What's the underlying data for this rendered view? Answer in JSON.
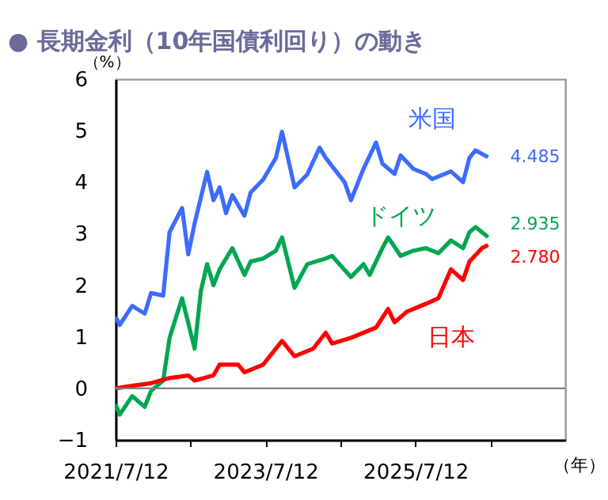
{
  "chart_data": {
    "type": "line",
    "title": "● 長期金利（10年国債利回り）の動き",
    "xlabel": "（年）",
    "ylabel": "（%）",
    "xlim": [
      "2021-07-12",
      "2027-07-12"
    ],
    "xticks": [
      {
        "value": "2021-07-12",
        "label": "2021/7/12"
      },
      {
        "value": "2022-07-12",
        "label": null
      },
      {
        "value": "2023-07-12",
        "label": "2023/7/12"
      },
      {
        "value": "2024-07-12",
        "label": null
      },
      {
        "value": "2025-07-12",
        "label": "2025/7/12"
      },
      {
        "value": "2026-07-12",
        "label": null
      }
    ],
    "ylim": [
      -1,
      6
    ],
    "yticks": [
      -1,
      0,
      1,
      2,
      3,
      4,
      5,
      6
    ],
    "grid": false,
    "ref_lines": [
      {
        "axis": "y",
        "value": 0,
        "color": "#808080"
      }
    ],
    "series": [
      {
        "name": "米国",
        "color": "#3d6bff",
        "x": [
          "2021-07-12",
          "2021-08",
          "2021-10",
          "2021-12",
          "2022-01",
          "2022-03",
          "2022-04",
          "2022-06",
          "2022-07",
          "2022-08",
          "2022-10",
          "2022-11",
          "2022-12",
          "2023-01",
          "2023-02",
          "2023-04",
          "2023-05",
          "2023-07",
          "2023-09",
          "2023-10",
          "2023-12",
          "2024-02",
          "2024-04",
          "2024-05",
          "2024-06",
          "2024-08",
          "2024-09",
          "2024-11",
          "2025-01",
          "2025-02",
          "2025-04",
          "2025-05",
          "2025-07",
          "2025-09",
          "2025-10",
          "2026-01",
          "2026-03",
          "2026-04",
          "2026-05",
          "2026-07"
        ],
        "values": [
          1.39,
          1.23,
          1.6,
          1.45,
          1.85,
          1.8,
          3.03,
          3.5,
          2.6,
          3.2,
          4.2,
          3.65,
          3.9,
          3.4,
          3.75,
          3.35,
          3.8,
          4.05,
          4.47,
          4.98,
          3.9,
          4.15,
          4.67,
          4.47,
          4.31,
          4.0,
          3.65,
          4.26,
          4.77,
          4.36,
          4.16,
          4.52,
          4.26,
          4.16,
          4.06,
          4.21,
          4.0,
          4.47,
          4.62,
          4.485
        ],
        "value_labels": [
          null,
          null,
          null,
          null,
          null,
          null,
          null,
          null,
          null,
          null,
          null,
          null,
          null,
          null,
          null,
          null,
          null,
          null,
          null,
          null,
          null,
          null,
          null,
          null,
          null,
          null,
          null,
          null,
          null,
          null,
          null,
          null,
          null,
          null,
          null,
          null,
          null,
          null,
          null,
          "4.485"
        ]
      },
      {
        "name": "ドイツ",
        "color": "#00a651",
        "x": [
          "2021-07-12",
          "2021-08",
          "2021-10",
          "2021-12",
          "2022-01",
          "2022-03",
          "2022-04",
          "2022-06",
          "2022-08",
          "2022-09",
          "2022-10",
          "2022-11",
          "2022-12",
          "2023-02",
          "2023-04",
          "2023-05",
          "2023-07",
          "2023-09",
          "2023-10",
          "2023-12",
          "2024-02",
          "2024-05",
          "2024-06",
          "2024-09",
          "2024-11",
          "2024-12",
          "2025-02",
          "2025-03",
          "2025-05",
          "2025-07",
          "2025-09",
          "2025-11",
          "2026-01",
          "2026-03",
          "2026-04",
          "2026-05",
          "2026-07"
        ],
        "values": [
          -0.31,
          -0.51,
          -0.15,
          -0.36,
          -0.05,
          0.15,
          0.98,
          1.75,
          0.77,
          1.9,
          2.41,
          2.0,
          2.31,
          2.72,
          2.2,
          2.46,
          2.52,
          2.67,
          2.93,
          1.95,
          2.41,
          2.52,
          2.57,
          2.16,
          2.41,
          2.2,
          2.72,
          2.93,
          2.57,
          2.67,
          2.72,
          2.62,
          2.87,
          2.72,
          3.03,
          3.13,
          2.935
        ],
        "value_labels": [
          null,
          null,
          null,
          null,
          null,
          null,
          null,
          null,
          null,
          null,
          null,
          null,
          null,
          null,
          null,
          null,
          null,
          null,
          null,
          null,
          null,
          null,
          null,
          null,
          null,
          null,
          null,
          null,
          null,
          null,
          null,
          null,
          null,
          null,
          null,
          null,
          "2.935"
        ]
      },
      {
        "name": "日本",
        "color": "#ff0000",
        "x": [
          "2021-07-12",
          "2021-10",
          "2022-01",
          "2022-04",
          "2022-07",
          "2022-08",
          "2022-11",
          "2022-12",
          "2023-03",
          "2023-04",
          "2023-07",
          "2023-10",
          "2023-12",
          "2024-03",
          "2024-05",
          "2024-06",
          "2024-09",
          "2024-11",
          "2025-01",
          "2025-03",
          "2025-04",
          "2025-06",
          "2025-09",
          "2025-11",
          "2026-01",
          "2026-03",
          "2026-04",
          "2026-06",
          "2026-07"
        ],
        "values": [
          0.0,
          0.05,
          0.1,
          0.2,
          0.25,
          0.15,
          0.25,
          0.46,
          0.46,
          0.31,
          0.46,
          0.92,
          0.62,
          0.77,
          1.08,
          0.87,
          0.98,
          1.08,
          1.18,
          1.54,
          1.28,
          1.49,
          1.64,
          1.75,
          2.31,
          2.1,
          2.46,
          2.72,
          2.78
        ],
        "value_labels": [
          null,
          null,
          null,
          null,
          null,
          null,
          null,
          null,
          null,
          null,
          null,
          null,
          null,
          null,
          null,
          null,
          null,
          null,
          null,
          null,
          null,
          null,
          null,
          null,
          null,
          null,
          null,
          null,
          "2.780"
        ]
      }
    ]
  }
}
